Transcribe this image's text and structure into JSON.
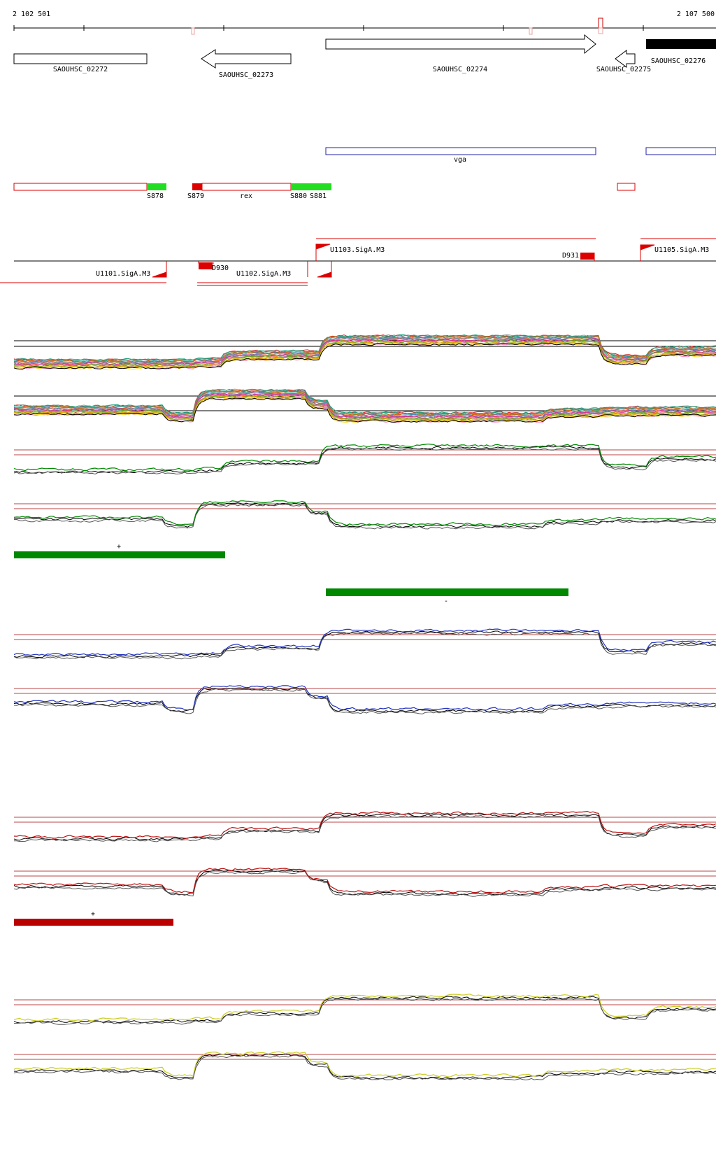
{
  "coords": {
    "start": "2 102 501",
    "end": "2 107 500"
  },
  "genes": [
    {
      "label": "SAOUHSC_02272",
      "strand": "none",
      "fill": "#ffffff"
    },
    {
      "label": "SAOUHSC_02273",
      "strand": "minus",
      "fill": "#ffffff"
    },
    {
      "label": "SAOUHSC_02274",
      "strand": "plus",
      "fill": "#ffffff"
    },
    {
      "label": "SAOUHSC_02275",
      "strand": "minus",
      "fill": "#ffffff"
    },
    {
      "label": "SAOUHSC_02276",
      "strand": "none",
      "fill": "#000000"
    }
  ],
  "operon": {
    "label": "vga",
    "color": "#2222aa"
  },
  "segments": {
    "labels": [
      "S878",
      "S879",
      "rex",
      "S880",
      "S881"
    ],
    "colors": {
      "outline": "#dd0000",
      "green": "#22dd22",
      "red": "#dd0000"
    }
  },
  "tss": {
    "labels": [
      "U1101.SigA.M3",
      "D930",
      "U1102.SigA.M3",
      "U1103.SigA.M3",
      "D931",
      "U1105.SigA.M3"
    ],
    "color": "#dd0000"
  },
  "expression": {
    "bar_plus_1": {
      "label": "+",
      "color": "#008800"
    },
    "bar_minus_1": {
      "label": "-",
      "color": "#008800"
    },
    "bar_plus_2": {
      "label": "+",
      "color": "#bb0000"
    },
    "track_colors": [
      "#008800",
      "#2233bb",
      "#bb1111",
      "#cccc22"
    ]
  }
}
